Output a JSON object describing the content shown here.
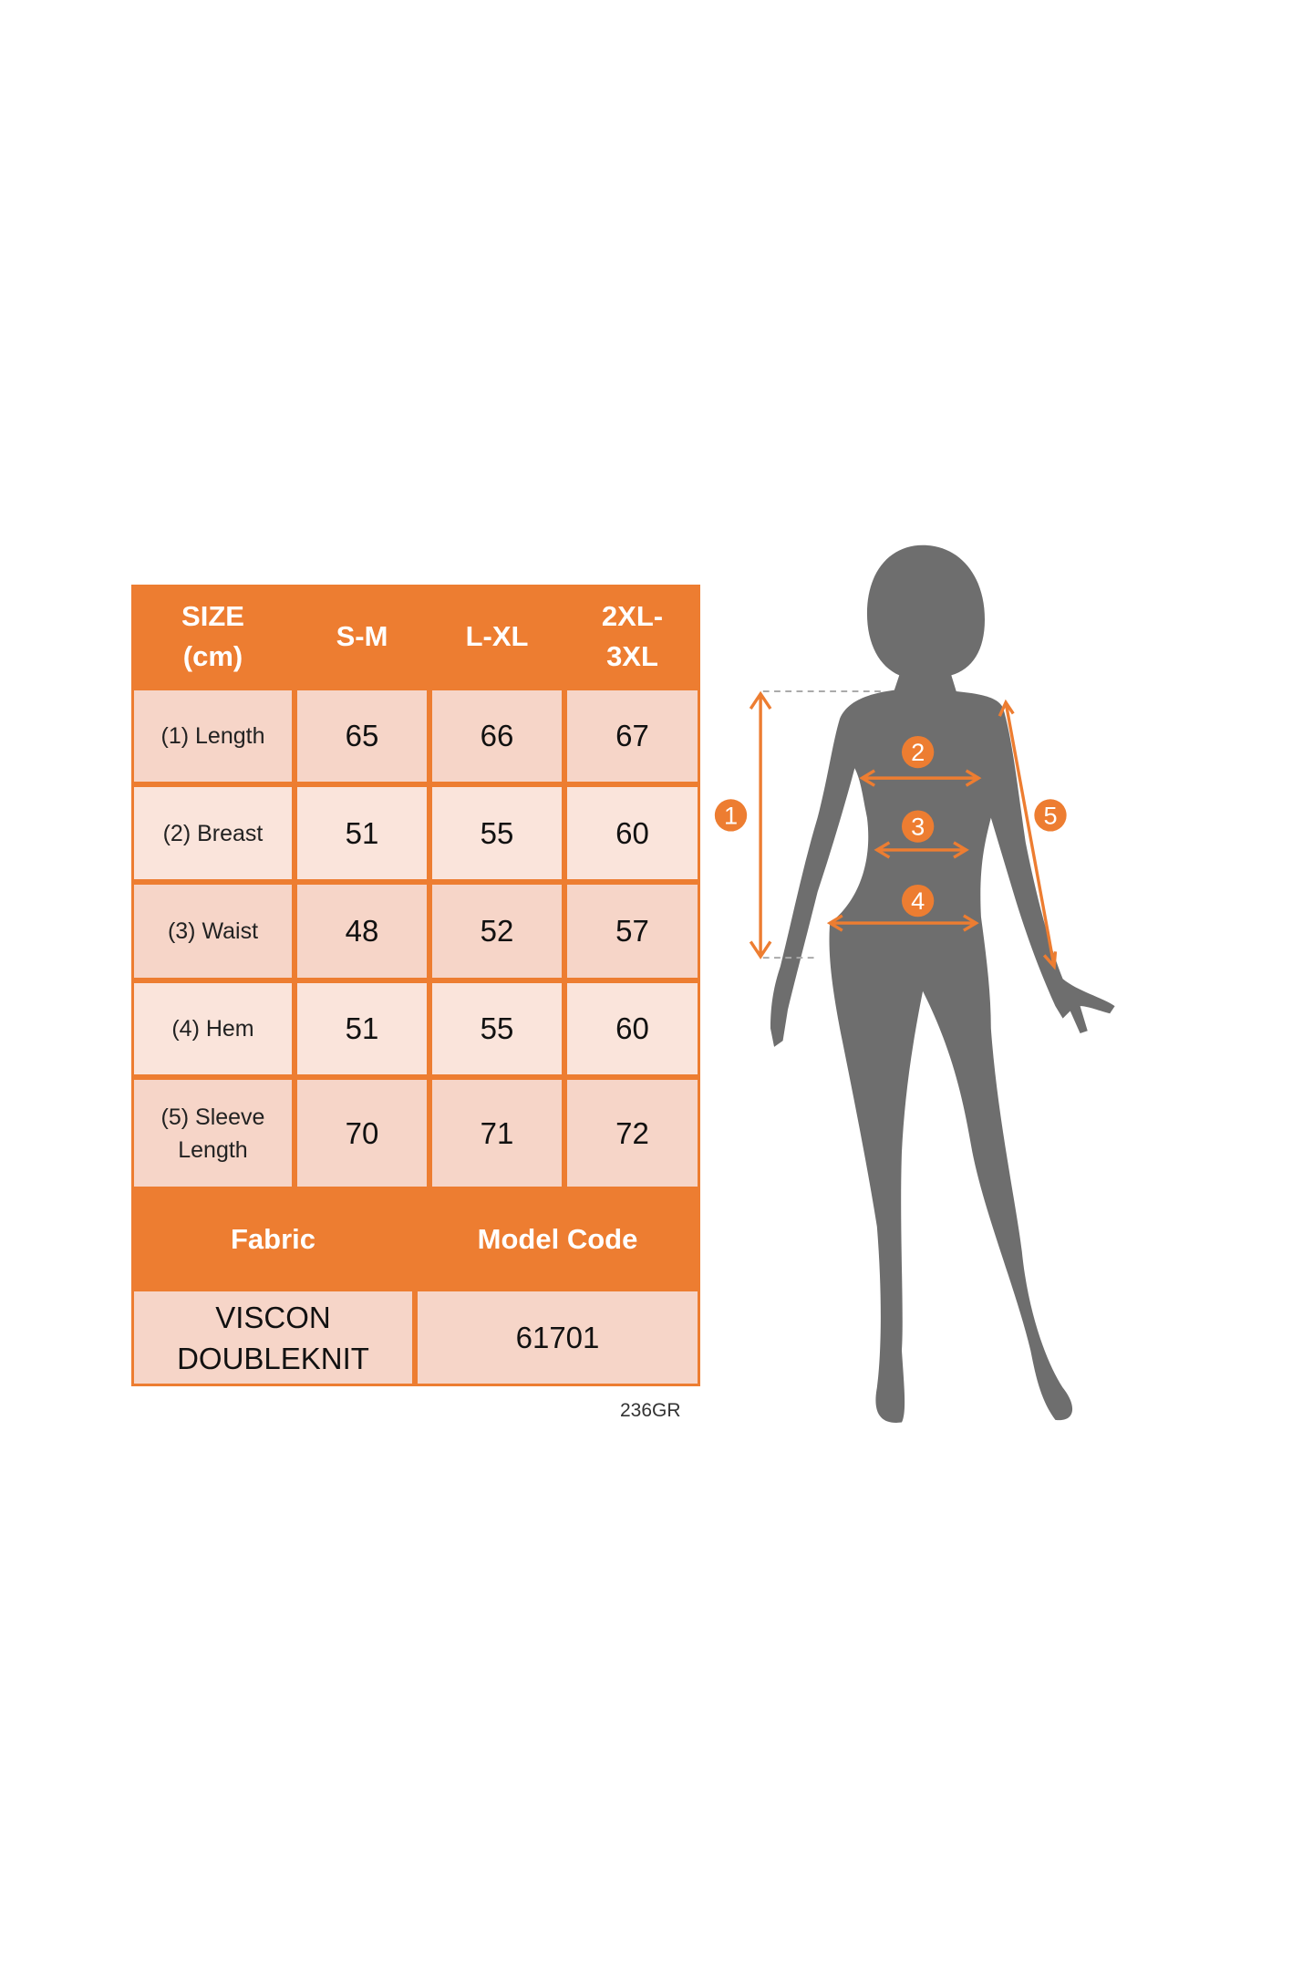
{
  "size_table": {
    "header": [
      "SIZE\n(cm)",
      "S-M",
      "L-XL",
      "2XL-\n3XL"
    ],
    "rows": [
      {
        "label": "(1) Length",
        "values": [
          "65",
          "66",
          "67"
        ]
      },
      {
        "label": "(2) Breast",
        "values": [
          "51",
          "55",
          "60"
        ]
      },
      {
        "label": "(3) Waist",
        "values": [
          "48",
          "52",
          "57"
        ]
      },
      {
        "label": "(4) Hem",
        "values": [
          "51",
          "55",
          "60"
        ]
      },
      {
        "label": "(5) Sleeve\nLength",
        "values": [
          "70",
          "71",
          "72"
        ]
      }
    ],
    "footer_header": [
      "Fabric",
      "Model Code"
    ],
    "footer_values": [
      "VISCON\nDOUBLEKNIT",
      "61701"
    ]
  },
  "code": "236GR",
  "figure": {
    "markers": [
      "1",
      "2",
      "3",
      "4",
      "5"
    ]
  },
  "colors": {
    "accent": "#ED7D31",
    "silhouette": "#6E6E6E",
    "cell_dark": "#F6D5C8",
    "cell_light": "#FAE4DB"
  }
}
